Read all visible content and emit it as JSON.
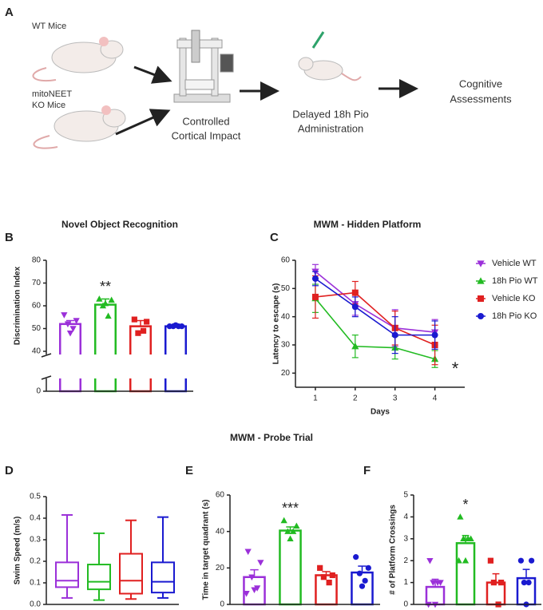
{
  "panel_a": {
    "panel": "A",
    "wt_label": "WT Mice",
    "ko_label": [
      "mitoNEET",
      "KO Mice"
    ],
    "step1": [
      "Controlled",
      "Cortical Impact"
    ],
    "step2": [
      "Delayed 18h Pio",
      "Administration"
    ],
    "step3": [
      "Cognitive",
      "Assessments"
    ]
  },
  "section_title": "MWM - Probe Trial",
  "chart_data": [
    {
      "type": "bar",
      "panel": "B",
      "title": "Novel Object Recognition",
      "ylabel": "Discrimination Index",
      "values": [
        52,
        60.5,
        51,
        51
      ],
      "errors": [
        1.5,
        2.5,
        2.5,
        0.5
      ],
      "colors": [
        "#9b30d9",
        "#22bb22",
        "#e02020",
        "#1a1ad0"
      ],
      "markers": [
        "triangle-down",
        "triangle",
        "square",
        "circle"
      ],
      "points": [
        [
          56,
          53.5,
          52,
          50,
          48
        ],
        [
          63,
          62.5,
          60,
          55.5,
          61
        ],
        [
          54,
          53,
          48,
          49
        ],
        [
          51,
          51,
          51,
          51,
          51.5
        ]
      ],
      "significance": [
        null,
        "**",
        null,
        null
      ],
      "ylim": [
        0,
        80
      ],
      "axis_break": [
        0,
        40
      ],
      "yticks": [
        0,
        40,
        50,
        60,
        70,
        80
      ]
    },
    {
      "type": "line",
      "panel": "C",
      "title": "MWM - Hidden Platform",
      "ylabel": "Latency to escape (s)",
      "xlabel": "Days",
      "x": [
        1,
        2,
        3,
        4
      ],
      "xlim": [
        0.5,
        4.75
      ],
      "xticks": [
        1,
        2,
        3,
        4
      ],
      "ylim": [
        15,
        60
      ],
      "yticks": [
        20,
        30,
        40,
        50,
        60
      ],
      "legend": "right",
      "annotation": "*",
      "series": [
        {
          "name": "Vehicle WT",
          "color": "#9b30d9",
          "marker": "triangle-down",
          "values": [
            56,
            44.5,
            36,
            34.5
          ],
          "errors": [
            2.5,
            4,
            6.5,
            4.5
          ]
        },
        {
          "name": "18h Pio WT",
          "color": "#22bb22",
          "marker": "triangle",
          "values": [
            46.5,
            29.5,
            29,
            25
          ],
          "errors": [
            5,
            4,
            4,
            3
          ]
        },
        {
          "name": "Vehicle KO",
          "color": "#e02020",
          "marker": "square",
          "values": [
            47,
            48.5,
            36,
            30
          ],
          "errors": [
            7.5,
            4,
            6,
            7
          ]
        },
        {
          "name": "18h Pio KO",
          "color": "#1a1ad0",
          "marker": "circle",
          "values": [
            53.5,
            43.5,
            33.5,
            33.5
          ],
          "errors": [
            2.5,
            3.5,
            6.5,
            5
          ]
        }
      ]
    },
    {
      "type": "box",
      "panel": "D",
      "ylabel": "Swim Speed (m/s)",
      "colors": [
        "#9b30d9",
        "#22bb22",
        "#e02020",
        "#1a1ad0"
      ],
      "boxes": [
        {
          "min": 0.03,
          "q1": 0.08,
          "median": 0.11,
          "q3": 0.195,
          "max": 0.415
        },
        {
          "min": 0.02,
          "q1": 0.07,
          "median": 0.105,
          "q3": 0.185,
          "max": 0.33
        },
        {
          "min": 0.025,
          "q1": 0.05,
          "median": 0.11,
          "q3": 0.235,
          "max": 0.39
        },
        {
          "min": 0.03,
          "q1": 0.055,
          "median": 0.105,
          "q3": 0.195,
          "max": 0.405
        }
      ],
      "ylim": [
        0,
        0.5
      ],
      "yticks": [
        {
          "value": 0,
          "label": "0.0"
        },
        0.1,
        0.2,
        0.3,
        0.4,
        0.5
      ]
    },
    {
      "type": "bar",
      "panel": "E",
      "ylabel": "Time in target quadrant (s)",
      "values": [
        15,
        40.5,
        16,
        17.5
      ],
      "errors": [
        4,
        2,
        2,
        3.5
      ],
      "colors": [
        "#9b30d9",
        "#22bb22",
        "#e02020",
        "#1a1ad0"
      ],
      "markers": [
        "triangle-down",
        "triangle",
        "square",
        "circle"
      ],
      "points": [
        [
          29,
          23,
          15,
          9,
          8,
          6
        ],
        [
          46,
          43,
          40,
          40,
          36
        ],
        [
          20,
          16,
          15,
          12
        ],
        [
          26,
          20,
          17,
          13,
          10
        ]
      ],
      "significance": [
        null,
        "***",
        null,
        null
      ],
      "ylim": [
        0,
        60
      ],
      "yticks": [
        0,
        20,
        40,
        60
      ]
    },
    {
      "type": "bar",
      "panel": "F",
      "ylabel": "# of Platform Crossings",
      "values": [
        0.8,
        2.8,
        1,
        1.2
      ],
      "errors": [
        0.35,
        0.35,
        0.4,
        0.4
      ],
      "colors": [
        "#9b30d9",
        "#22bb22",
        "#e02020",
        "#1a1ad0"
      ],
      "markers": [
        "triangle-down",
        "triangle",
        "square",
        "circle"
      ],
      "points": [
        [
          2,
          1,
          1,
          1,
          0,
          0
        ],
        [
          4,
          3,
          3,
          3,
          2,
          2
        ],
        [
          2,
          1,
          1,
          0
        ],
        [
          2,
          2,
          1,
          1,
          0
        ]
      ],
      "significance": [
        null,
        "*",
        null,
        null
      ],
      "ylim": [
        0,
        5
      ],
      "yticks": [
        0,
        1,
        2,
        3,
        4,
        5
      ]
    }
  ]
}
